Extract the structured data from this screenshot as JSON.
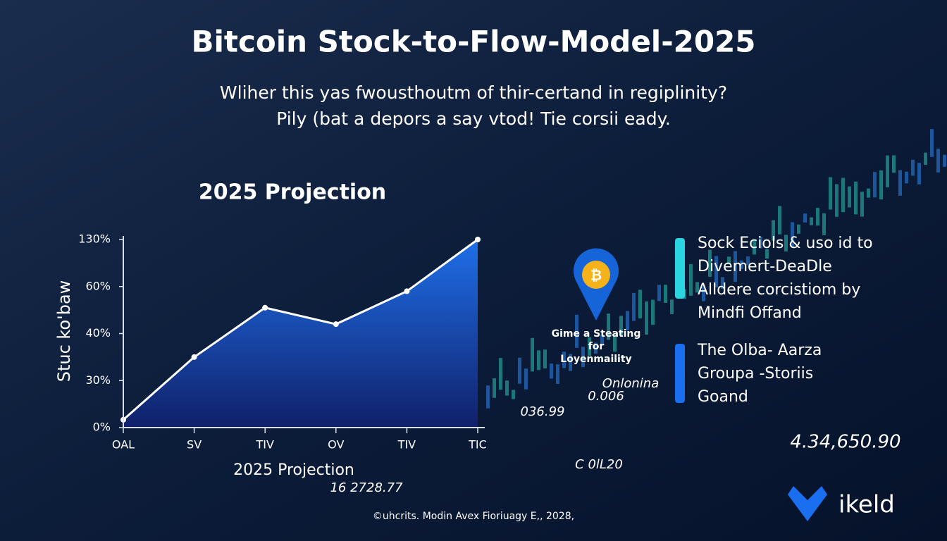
{
  "chart_data": {
    "type": "area",
    "title": "Bitcoin Stock-to-Flow-Model-2025",
    "subtitle": [
      "Wliher this yas fwousthoutm of thir-certand in regiplinity?",
      "Pily (bat a depors a say vtod! Tie corsii eady."
    ],
    "heading": "2025 Projection",
    "x_label": "2025 Projection",
    "y_label": "Stuc ko'baw",
    "categories": [
      "OAL",
      "SV",
      "TIV",
      "OV",
      "TIV",
      "TIC"
    ],
    "values": [
      5,
      35,
      51,
      44,
      58,
      130
    ],
    "color": "#1f6fe0",
    "ylim": [
      0,
      130
    ],
    "yticks": [
      {
        "value": 0,
        "label": "0%"
      },
      {
        "value": 30,
        "label": "30%"
      },
      {
        "value": 40,
        "label": "40%"
      },
      {
        "value": 60,
        "label": "60%"
      },
      {
        "value": 130,
        "label": "130%"
      }
    ]
  },
  "pin_label": [
    "Gime a Steating",
    "for",
    "Loyenmaility"
  ],
  "notes": [
    [
      "Sock Eciols & uso id to",
      "Divemert-DeaDle",
      "Alldere corcistiom by",
      "Mindfi Offand"
    ],
    [
      "The Olba- Aarza",
      "Groupa -Storiis",
      "Goand"
    ]
  ],
  "background_numbers": [
    "Onlonina",
    "0.006",
    "036.99",
    "4.34,650.90",
    "C 0lL20",
    "16 2728.77"
  ],
  "footer": "©uhcrits. Modin Avex Fioriuagy E,, 2028,",
  "logo": "ikeld"
}
